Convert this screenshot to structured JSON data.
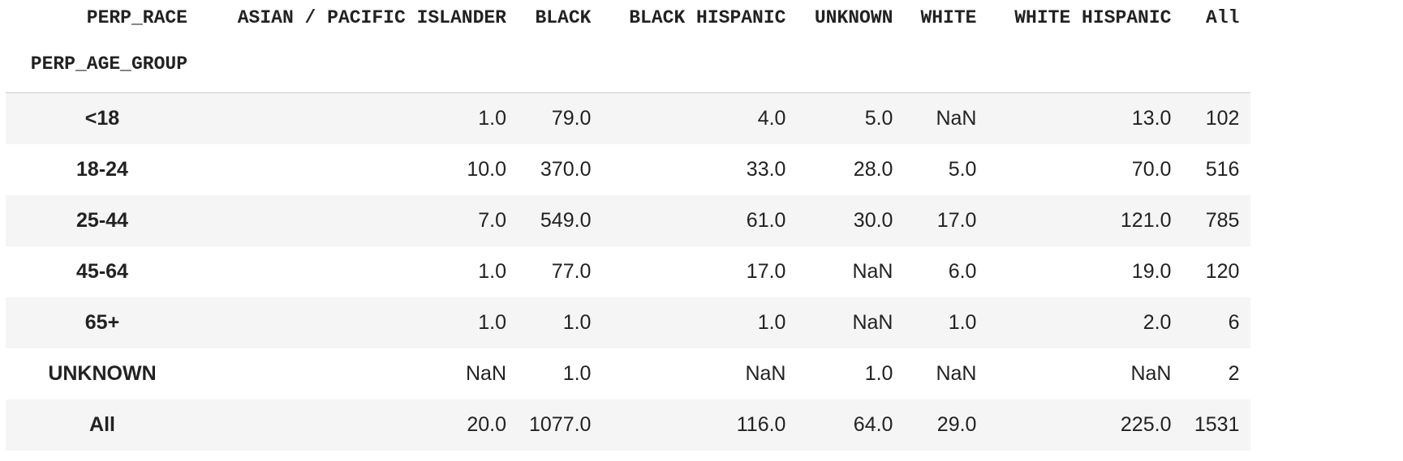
{
  "table": {
    "columns_name": "PERP_RACE",
    "index_name": "PERP_AGE_GROUP",
    "columns": [
      "ASIAN / PACIFIC ISLANDER",
      "BLACK",
      "BLACK HISPANIC",
      "UNKNOWN",
      "WHITE",
      "WHITE HISPANIC",
      "All"
    ],
    "rows": [
      {
        "label": "<18",
        "cells": [
          "1.0",
          "79.0",
          "4.0",
          "5.0",
          "NaN",
          "13.0",
          "102"
        ]
      },
      {
        "label": "18-24",
        "cells": [
          "10.0",
          "370.0",
          "33.0",
          "28.0",
          "5.0",
          "70.0",
          "516"
        ]
      },
      {
        "label": "25-44",
        "cells": [
          "7.0",
          "549.0",
          "61.0",
          "30.0",
          "17.0",
          "121.0",
          "785"
        ]
      },
      {
        "label": "45-64",
        "cells": [
          "1.0",
          "77.0",
          "17.0",
          "NaN",
          "6.0",
          "19.0",
          "120"
        ]
      },
      {
        "label": "65+",
        "cells": [
          "1.0",
          "1.0",
          "1.0",
          "NaN",
          "1.0",
          "2.0",
          "6"
        ]
      },
      {
        "label": "UNKNOWN",
        "cells": [
          "NaN",
          "1.0",
          "NaN",
          "1.0",
          "NaN",
          "NaN",
          "2"
        ]
      },
      {
        "label": "All",
        "cells": [
          "20.0",
          "1077.0",
          "116.0",
          "64.0",
          "29.0",
          "225.0",
          "1531"
        ]
      }
    ]
  }
}
